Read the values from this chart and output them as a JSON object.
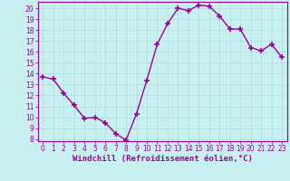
{
  "x": [
    0,
    1,
    2,
    3,
    4,
    5,
    6,
    7,
    8,
    9,
    10,
    11,
    12,
    13,
    14,
    15,
    16,
    17,
    18,
    19,
    20,
    21,
    22,
    23
  ],
  "y": [
    13.7,
    13.5,
    12.2,
    11.1,
    9.9,
    10.0,
    9.5,
    8.5,
    7.9,
    10.3,
    13.4,
    16.7,
    18.6,
    20.0,
    19.8,
    20.3,
    20.2,
    19.3,
    18.1,
    18.1,
    16.4,
    16.1,
    16.7,
    15.5
  ],
  "line_color": "#990099",
  "marker": "+",
  "markersize": 4,
  "linewidth": 1.0,
  "bg_color": "#c8f0f0",
  "grid_color": "#aadddd",
  "xlabel": "Windchill (Refroidissement éolien,°C)",
  "xlabel_fontsize": 6.5,
  "xlim": [
    -0.5,
    23.5
  ],
  "ylim": [
    7.8,
    20.6
  ],
  "yticks": [
    8,
    9,
    10,
    11,
    12,
    13,
    14,
    15,
    16,
    17,
    18,
    19,
    20
  ],
  "xticks": [
    0,
    1,
    2,
    3,
    4,
    5,
    6,
    7,
    8,
    9,
    10,
    11,
    12,
    13,
    14,
    15,
    16,
    17,
    18,
    19,
    20,
    21,
    22,
    23
  ],
  "tick_fontsize": 5.5,
  "tick_color": "#990099",
  "axis_color": "#990099",
  "markeredgewidth": 1.2
}
